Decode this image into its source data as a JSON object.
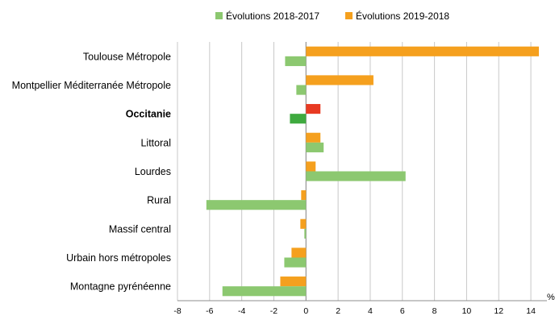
{
  "chart_data": {
    "type": "bar",
    "orientation": "horizontal",
    "categories": [
      "Toulouse Métropole",
      "Montpellier Méditerranée Métropole",
      "Occitanie",
      "Littoral",
      "Lourdes",
      "Rural",
      "Massif central",
      "Urbain hors métropoles",
      "Montagne pyrénéenne"
    ],
    "emphasized_category": "Occitanie",
    "series": [
      {
        "name": "Évolutions 2018-2017",
        "color": "#8cc870",
        "highlight_color": "#3faa3f",
        "values": [
          -1.3,
          -0.6,
          -1.0,
          1.1,
          6.2,
          -6.2,
          -0.1,
          -1.35,
          -5.2
        ]
      },
      {
        "name": "Évolutions 2019-2018",
        "color": "#f5a01e",
        "highlight_color": "#e83a22",
        "values": [
          14.5,
          4.2,
          0.9,
          0.9,
          0.6,
          -0.3,
          -0.35,
          -0.9,
          -1.6
        ]
      }
    ],
    "x_ticks": [
      -8,
      -6,
      -4,
      -2,
      0,
      2,
      4,
      6,
      8,
      10,
      12,
      14
    ],
    "xlim": [
      -8,
      15
    ],
    "x_unit": "%",
    "grid": "vertical",
    "legend_position": "top"
  }
}
